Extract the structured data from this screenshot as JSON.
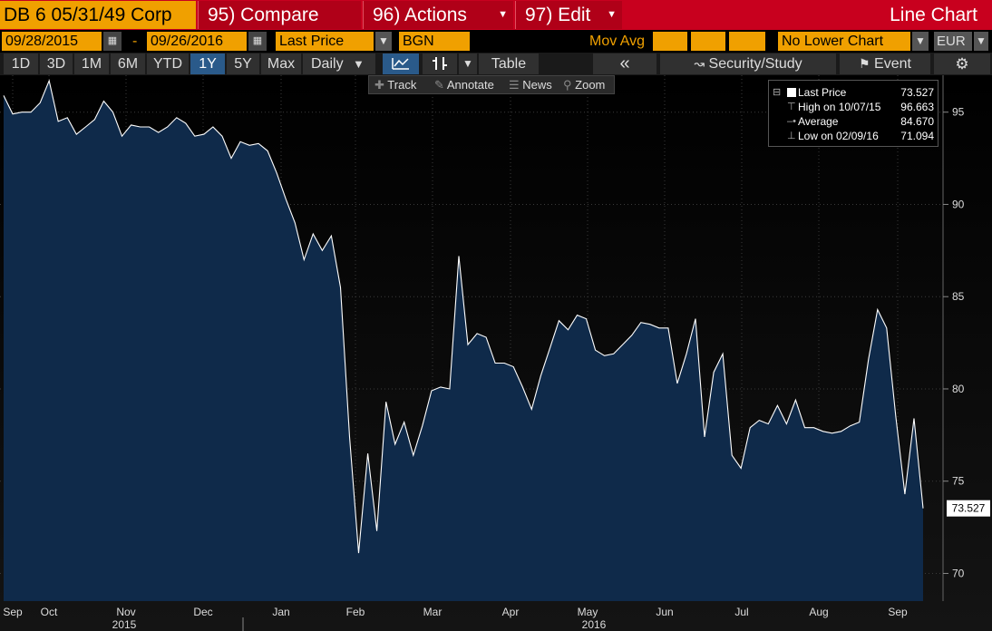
{
  "titlebar": {
    "ticker": "DB 6 05/31/49 Corp",
    "compare": "95) Compare",
    "actions": "96) Actions",
    "edit": "97) Edit",
    "chart_type": "Line Chart"
  },
  "controls": {
    "start_date": "09/28/2015",
    "dash": "-",
    "end_date": "09/26/2016",
    "field": "Last Price",
    "source": "BGN",
    "mov_avg_label": "Mov Avg",
    "lower_chart": "No Lower Chart",
    "currency": "EUR"
  },
  "periods": [
    {
      "label": "1D",
      "active": false
    },
    {
      "label": "3D",
      "active": false
    },
    {
      "label": "1M",
      "active": false
    },
    {
      "label": "6M",
      "active": false
    },
    {
      "label": "YTD",
      "active": false
    },
    {
      "label": "1Y",
      "active": true
    },
    {
      "label": "5Y",
      "active": false
    },
    {
      "label": "Max",
      "active": false
    }
  ],
  "toolbar": {
    "frequency": "Daily",
    "table": "Table",
    "security_study": "Security/Study",
    "event": "Event"
  },
  "tools": {
    "track": "Track",
    "annotate": "Annotate",
    "news": "News",
    "zoom": "Zoom"
  },
  "legend": {
    "last_label": "Last Price",
    "last_value": "73.527",
    "high_label": "High on 10/07/15",
    "high_value": "96.663",
    "avg_label": "Average",
    "avg_value": "84.670",
    "low_label": "Low on 02/09/16",
    "low_value": "71.094"
  },
  "colors": {
    "accent": "#f0a000",
    "titlebar": "#c8001e",
    "area_fill": "#0f2a4a",
    "line": "#ffffff"
  },
  "chart_data": {
    "type": "area",
    "x_labels": [
      "Sep",
      "Oct",
      "Nov",
      "Dec",
      "Jan",
      "Feb",
      "Mar",
      "Apr",
      "May",
      "Jun",
      "Jul",
      "Aug",
      "Sep"
    ],
    "year_labels": [
      "2015",
      "2016"
    ],
    "y_ticks": [
      70,
      75,
      80,
      85,
      90,
      95
    ],
    "ylim": [
      68.5,
      97
    ],
    "last_value_label": "73.527",
    "series": [
      {
        "values": [
          95.9,
          94.9,
          95.0,
          95.0,
          95.5,
          96.7,
          94.5,
          94.7,
          93.8,
          94.2,
          94.6,
          95.6,
          95.0,
          93.7,
          94.3,
          94.2,
          94.2,
          93.9,
          94.2,
          94.7,
          94.4,
          93.7,
          93.8,
          94.2,
          93.7,
          92.5,
          93.4,
          93.2,
          93.3,
          92.9,
          91.7,
          90.3,
          89.0,
          87.0,
          88.4,
          87.5,
          88.3,
          85.5,
          77.4,
          71.1,
          76.5,
          72.3,
          79.3,
          77.0,
          78.2,
          76.4,
          78.0,
          79.9,
          80.1,
          80.0,
          87.2,
          82.4,
          83.0,
          82.8,
          81.4,
          81.4,
          81.2,
          80.1,
          78.9,
          80.7,
          82.2,
          83.7,
          83.2,
          84.0,
          83.8,
          82.1,
          81.8,
          81.9,
          82.4,
          82.9,
          83.6,
          83.5,
          83.3,
          83.3,
          80.3,
          81.9,
          83.8,
          77.4,
          80.9,
          81.9,
          76.4,
          75.7,
          77.9,
          78.3,
          78.1,
          79.1,
          78.1,
          79.4,
          77.9,
          77.9,
          77.7,
          77.6,
          77.7,
          78.0,
          78.2,
          81.6,
          84.3,
          83.3,
          78.5,
          74.3,
          78.4,
          73.527
        ]
      }
    ]
  }
}
